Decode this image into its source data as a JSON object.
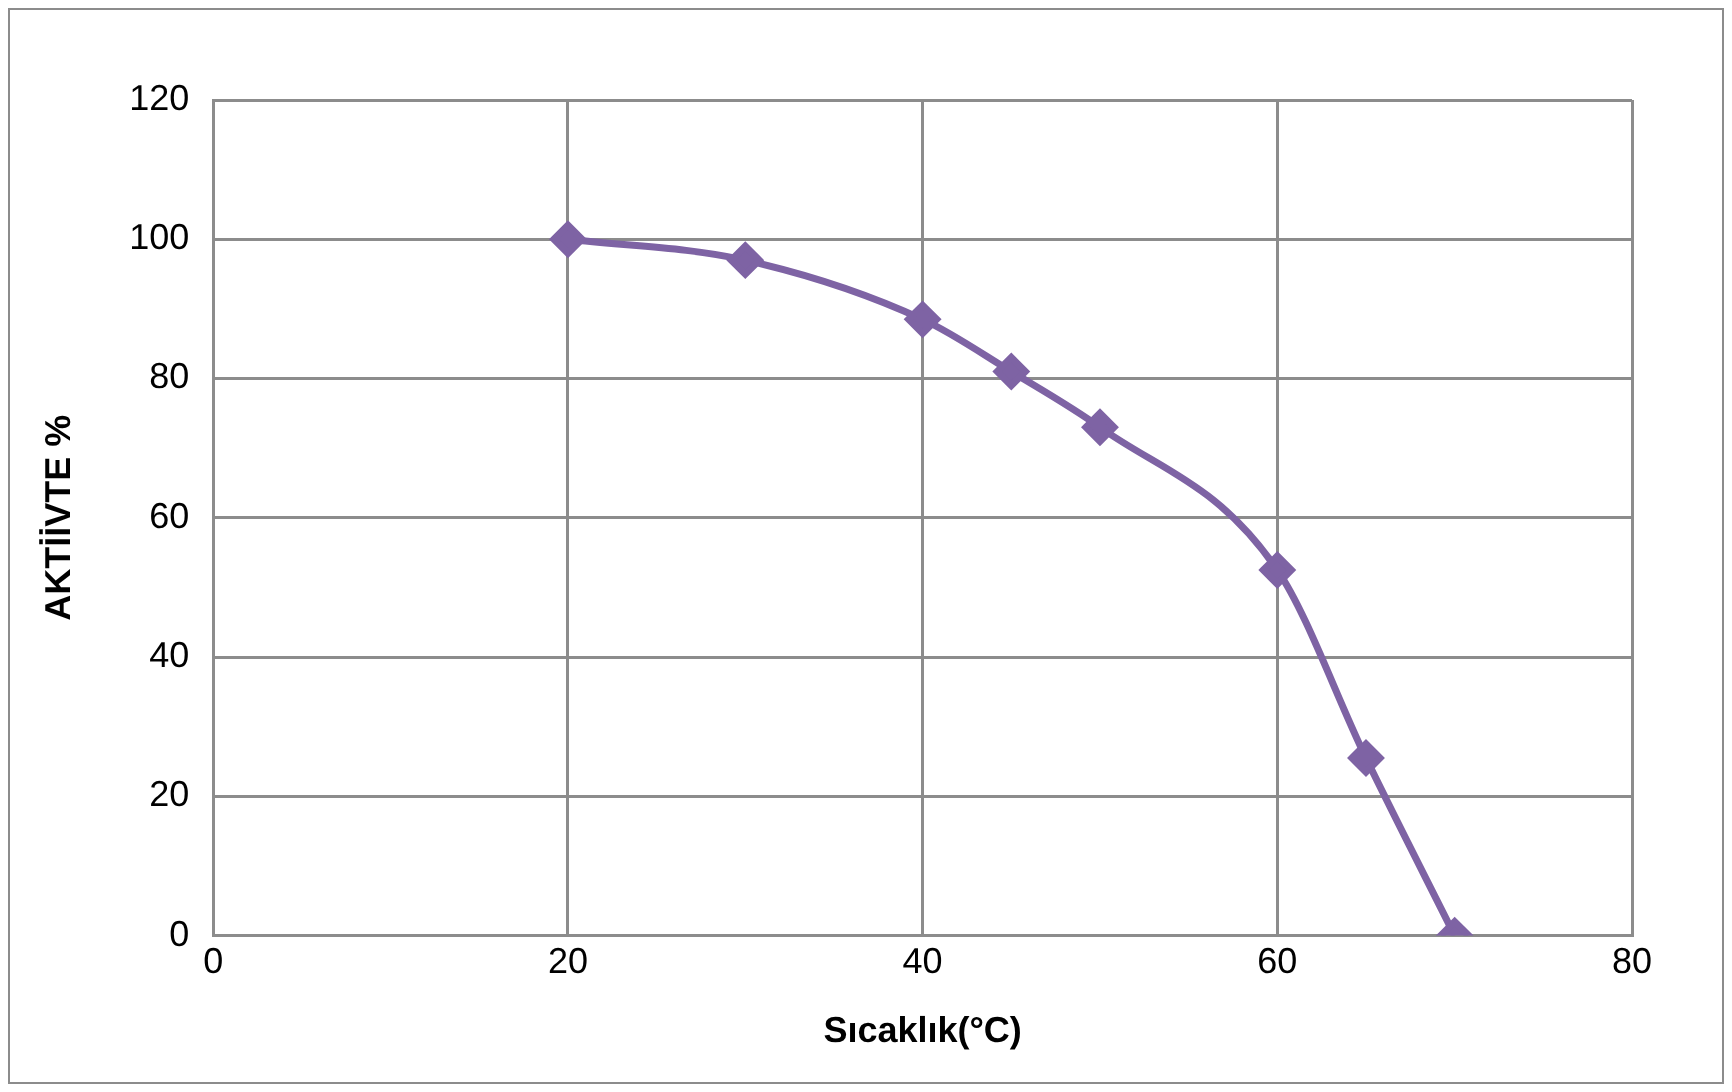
{
  "chart_data": {
    "type": "line",
    "xlabel": "Sıcaklık(°C)",
    "ylabel": "AKTİİVTE %",
    "x": [
      20,
      30,
      40,
      45,
      50,
      60,
      65,
      70
    ],
    "series": [
      {
        "color": "#7e63a4",
        "values": [
          100,
          97,
          88.5,
          81,
          73,
          52.5,
          25.5,
          0
        ]
      }
    ],
    "xlim": [
      0,
      80
    ],
    "xticks": [
      0,
      20,
      40,
      60,
      80
    ],
    "ylim": [
      0,
      120
    ],
    "yticks": [
      0,
      20,
      40,
      60,
      80,
      100,
      120
    ],
    "grid": true,
    "legend": false,
    "marker": "diamond",
    "line_style": "solid"
  }
}
